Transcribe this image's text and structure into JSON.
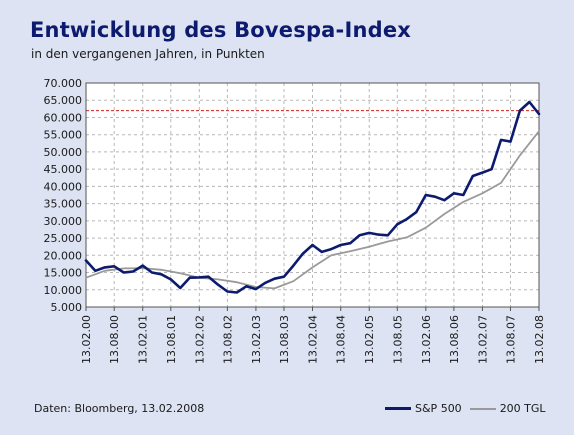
{
  "title": "Entwicklung des Bovespa-Index",
  "subtitle": "in den vergangenen Jahren, in Punkten",
  "source": "Daten: Bloomberg, 13.02.2008",
  "legend": [
    {
      "name": "S&P 500",
      "color": "#0d1b6e"
    },
    {
      "name": "200 TGL",
      "color": "#9a9a9a"
    }
  ],
  "chart_data": {
    "type": "line",
    "title": "Entwicklung des Bovespa-Index",
    "xlabel": "",
    "ylabel": "",
    "ylim": [
      5000,
      70000
    ],
    "y_ticks": [
      "5.000",
      "10.000",
      "15.000",
      "20.000",
      "25.000",
      "30.000",
      "35.000",
      "40.000",
      "45.000",
      "50.000",
      "55.000",
      "60.000",
      "65.000",
      "70.000"
    ],
    "y_tick_values": [
      5000,
      10000,
      15000,
      20000,
      25000,
      30000,
      35000,
      40000,
      45000,
      50000,
      55000,
      60000,
      65000,
      70000
    ],
    "x_ticks": [
      "13.02.00",
      "13.08.00",
      "13.02.01",
      "13.08.01",
      "13.02.02",
      "13.08.02",
      "13.02.03",
      "13.08.03",
      "13.02.04",
      "13.08.04",
      "13.02.05",
      "13.08.05",
      "13.02.06",
      "13.08.06",
      "13.02.07",
      "13.08.07",
      "13.02.08"
    ],
    "grid": true,
    "reference_line": {
      "value": 62000,
      "color": "#cc2222",
      "style": "dashed"
    },
    "series": [
      {
        "name": "S&P 500",
        "color": "#0d1b6e",
        "x": [
          "13.02.00",
          "13.04.00",
          "13.06.00",
          "13.08.00",
          "13.10.00",
          "13.12.00",
          "13.02.01",
          "13.04.01",
          "13.06.01",
          "13.08.01",
          "13.10.01",
          "13.12.01",
          "13.02.02",
          "13.04.02",
          "13.06.02",
          "13.08.02",
          "13.10.02",
          "13.12.02",
          "13.02.03",
          "13.04.03",
          "13.06.03",
          "13.08.03",
          "13.10.03",
          "13.12.03",
          "13.02.04",
          "13.04.04",
          "13.06.04",
          "13.08.04",
          "13.10.04",
          "13.12.04",
          "13.02.05",
          "13.04.05",
          "13.06.05",
          "13.08.05",
          "13.10.05",
          "13.12.05",
          "13.02.06",
          "13.04.06",
          "13.06.06",
          "13.08.06",
          "13.10.06",
          "13.12.06",
          "13.02.07",
          "13.04.07",
          "13.06.07",
          "13.08.07",
          "13.10.07",
          "13.12.07",
          "13.02.08"
        ],
        "values": [
          18500,
          15500,
          16500,
          16800,
          15000,
          15300,
          17000,
          15000,
          14500,
          13000,
          10500,
          13500,
          13600,
          13800,
          11500,
          9500,
          9200,
          11000,
          10200,
          12000,
          13200,
          13800,
          17000,
          20500,
          23000,
          21000,
          21800,
          23000,
          23500,
          25800,
          26500,
          26000,
          25800,
          29000,
          30500,
          32500,
          37500,
          37000,
          36000,
          38000,
          37500,
          43000,
          44000,
          45000,
          53500,
          53000,
          62000,
          64500,
          61000
        ]
      },
      {
        "name": "200 TGL",
        "color": "#9a9a9a",
        "x": [
          "13.02.00",
          "13.06.00",
          "13.10.00",
          "13.02.01",
          "13.06.01",
          "13.10.01",
          "13.02.02",
          "13.06.02",
          "13.10.02",
          "13.02.03",
          "13.06.03",
          "13.10.03",
          "13.02.04",
          "13.06.04",
          "13.10.04",
          "13.02.05",
          "13.06.05",
          "13.10.05",
          "13.02.06",
          "13.06.06",
          "13.10.06",
          "13.02.07",
          "13.06.07",
          "13.10.07",
          "13.02.08"
        ],
        "values": [
          13500,
          15500,
          16200,
          16300,
          15800,
          14800,
          13500,
          13000,
          12200,
          10800,
          10400,
          12500,
          16500,
          20000,
          21200,
          22500,
          24000,
          25200,
          28000,
          32000,
          35500,
          38000,
          41000,
          49000,
          56000
        ]
      }
    ]
  }
}
